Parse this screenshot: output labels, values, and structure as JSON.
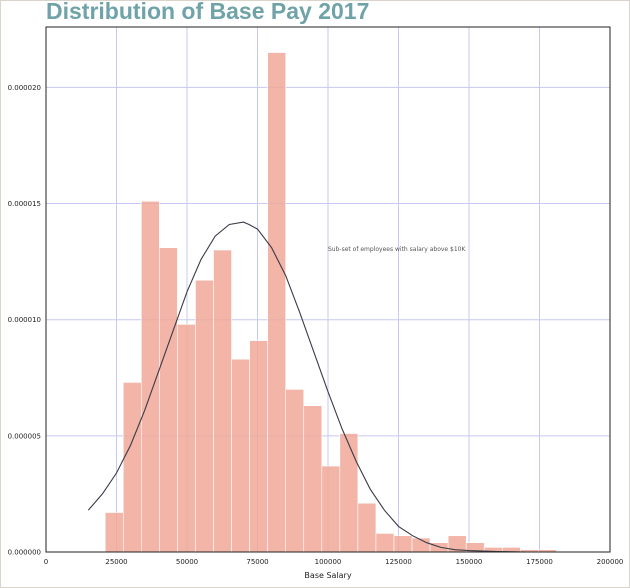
{
  "chart_data": {
    "type": "bar",
    "title": "Distribution of Base Pay 2017",
    "xlabel": "Base Salary",
    "ylabel": "",
    "annotation": "Sub-set of employees with salary above $10K",
    "xlim": [
      0,
      200000
    ],
    "ylim": [
      0,
      2.26e-05
    ],
    "xticks": [
      0,
      25000,
      50000,
      75000,
      100000,
      125000,
      150000,
      175000,
      200000
    ],
    "yticks": [
      "0.000000",
      "0.000005",
      "0.000010",
      "0.000015",
      "0.000020"
    ],
    "ytick_values": [
      0,
      5e-06,
      1e-05,
      1.5e-05,
      2e-05
    ],
    "grid": true,
    "bar_color": "#f0a898",
    "curve_color": "#3a3a48",
    "bins": {
      "start": 21000,
      "width": 6400,
      "values": [
        1.7e-06,
        7.3e-06,
        1.51e-05,
        1.31e-05,
        9.8e-06,
        1.17e-05,
        1.3e-05,
        8.3e-06,
        9.1e-06,
        2.15e-05,
        7e-06,
        6.3e-06,
        3.7e-06,
        5.1e-06,
        2.1e-06,
        8e-07,
        7e-07,
        6e-07,
        4e-07,
        7e-07,
        4e-07,
        2e-07,
        2e-07,
        1e-07,
        1e-07
      ]
    },
    "curve": {
      "x": [
        15000,
        20000,
        25000,
        30000,
        35000,
        40000,
        45000,
        50000,
        55000,
        60000,
        65000,
        70000,
        72000,
        75000,
        80000,
        85000,
        90000,
        95000,
        100000,
        105000,
        110000,
        115000,
        120000,
        125000,
        130000,
        135000,
        140000,
        145000,
        150000,
        160000,
        170000,
        180000,
        190000,
        200000
      ],
      "y": [
        1.8e-06,
        2.5e-06,
        3.4e-06,
        4.6e-06,
        6.1e-06,
        7.8e-06,
        9.5e-06,
        1.12e-05,
        1.26e-05,
        1.36e-05,
        1.41e-05,
        1.42e-05,
        1.41e-05,
        1.39e-05,
        1.31e-05,
        1.19e-05,
        1.03e-05,
        8.6e-06,
        6.9e-06,
        5.3e-06,
        3.9e-06,
        2.7e-06,
        1.8e-06,
        1.1e-06,
        7e-07,
        4e-07,
        2e-07,
        1e-07,
        6e-08,
        2e-08,
        0.0,
        0.0,
        0.0,
        0.0
      ]
    }
  }
}
